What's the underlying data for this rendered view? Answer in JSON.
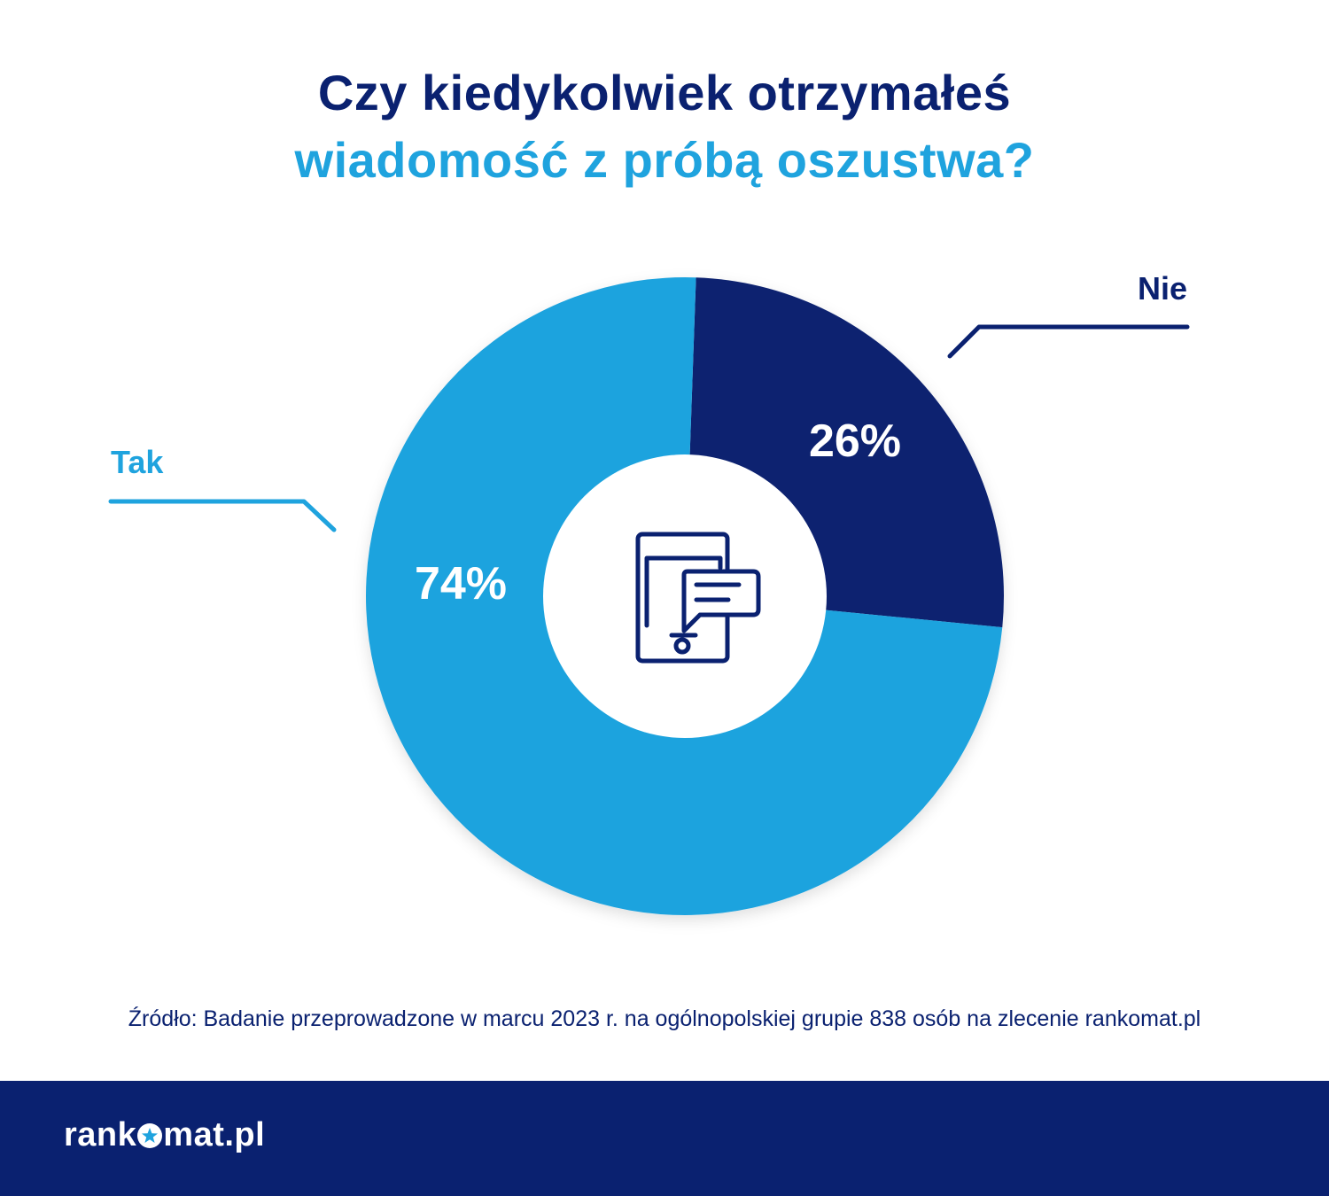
{
  "title": {
    "line1": "Czy kiedykolwiek otrzymałeś",
    "line2": "wiadomość z próbą oszustwa?"
  },
  "chart_data": {
    "type": "pie",
    "slices": [
      {
        "label": "Nie",
        "value": 26,
        "value_label": "26%",
        "color": "#0a2170"
      },
      {
        "label": "Tak",
        "value": 74,
        "value_label": "74%",
        "color": "#1fa3de"
      }
    ]
  },
  "center_icon": "phone-message-icon",
  "source": "Źródło: Badanie przeprowadzone w marcu 2023 r. na ogólnopolskiej grupie 838 osób na zlecenie rankomat.pl",
  "footer": {
    "logo_part1": "rank",
    "logo_part2": "mat.pl",
    "logo_icon": "star-icon"
  },
  "colors": {
    "navy": "#0a2170",
    "light_blue": "#1fa3de",
    "white": "#ffffff"
  }
}
